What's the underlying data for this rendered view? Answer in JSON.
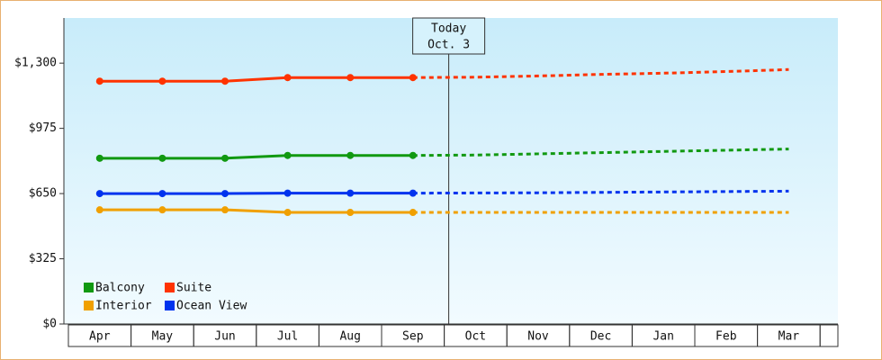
{
  "chart_data": {
    "type": "line",
    "categories": [
      "Apr",
      "May",
      "Jun",
      "Jul",
      "Aug",
      "Sep",
      "Oct",
      "Nov",
      "Dec",
      "Jan",
      "Feb",
      "Mar"
    ],
    "annotation": {
      "title": "Today",
      "date": "Oct. 3"
    },
    "ylim": [
      0,
      1525
    ],
    "yticks": [
      {
        "value": 0,
        "label": "$0"
      },
      {
        "value": 325,
        "label": "$325"
      },
      {
        "value": 650,
        "label": "$650"
      },
      {
        "value": 975,
        "label": "$975"
      },
      {
        "value": 1300,
        "label": "$1,300"
      }
    ],
    "grid": false,
    "series": [
      {
        "name": "Balcony",
        "color": "#119911",
        "values": [
          826,
          826,
          826,
          840,
          840,
          840,
          null,
          null,
          null,
          null,
          null,
          null
        ],
        "forecast": [
          null,
          null,
          null,
          null,
          null,
          null,
          842,
          848,
          854,
          860,
          866,
          872
        ]
      },
      {
        "name": "Suite",
        "color": "#ff3300",
        "values": [
          1210,
          1210,
          1210,
          1228,
          1228,
          1228,
          null,
          null,
          null,
          null,
          null,
          null
        ],
        "forecast": [
          null,
          null,
          null,
          null,
          null,
          null,
          1230,
          1236,
          1244,
          1250,
          1258,
          1268
        ]
      },
      {
        "name": "Interior",
        "color": "#f0a000",
        "values": [
          569,
          569,
          569,
          556,
          556,
          556,
          null,
          null,
          null,
          null,
          null,
          null
        ],
        "forecast": [
          null,
          null,
          null,
          null,
          null,
          null,
          556,
          556,
          556,
          556,
          556,
          556
        ]
      },
      {
        "name": "Ocean View",
        "color": "#0033ee",
        "values": [
          650,
          650,
          650,
          652,
          652,
          652,
          null,
          null,
          null,
          null,
          null,
          null
        ],
        "forecast": [
          null,
          null,
          null,
          null,
          null,
          null,
          653,
          654,
          656,
          658,
          660,
          662
        ]
      }
    ]
  }
}
